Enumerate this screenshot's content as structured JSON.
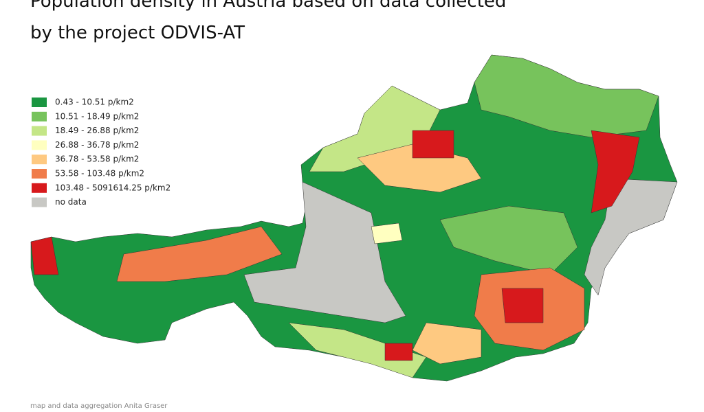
{
  "title": [
    "Population density in Austria based on data collected",
    "by the project ODVIS-AT"
  ],
  "legend": [
    {
      "label": "0.43 - 10.51 p/km2",
      "color": "#1a9641"
    },
    {
      "label": "10.51 - 18.49 p/km2",
      "color": "#77c35c"
    },
    {
      "label": "18.49 - 26.88 p/km2",
      "color": "#c4e687"
    },
    {
      "label": "26.88 - 36.78 p/km2",
      "color": "#ffffc0"
    },
    {
      "label": "36.78 - 53.58 p/km2",
      "color": "#fec981"
    },
    {
      "label": "53.58 - 103.48 p/km2",
      "color": "#f07c4a"
    },
    {
      "label": "103.48 - 5091614.25 p/km2",
      "color": "#d7191c"
    },
    {
      "label": "no data",
      "color": "#c8c8c4"
    }
  ],
  "credit": "map and data aggregation Anita Graser"
}
